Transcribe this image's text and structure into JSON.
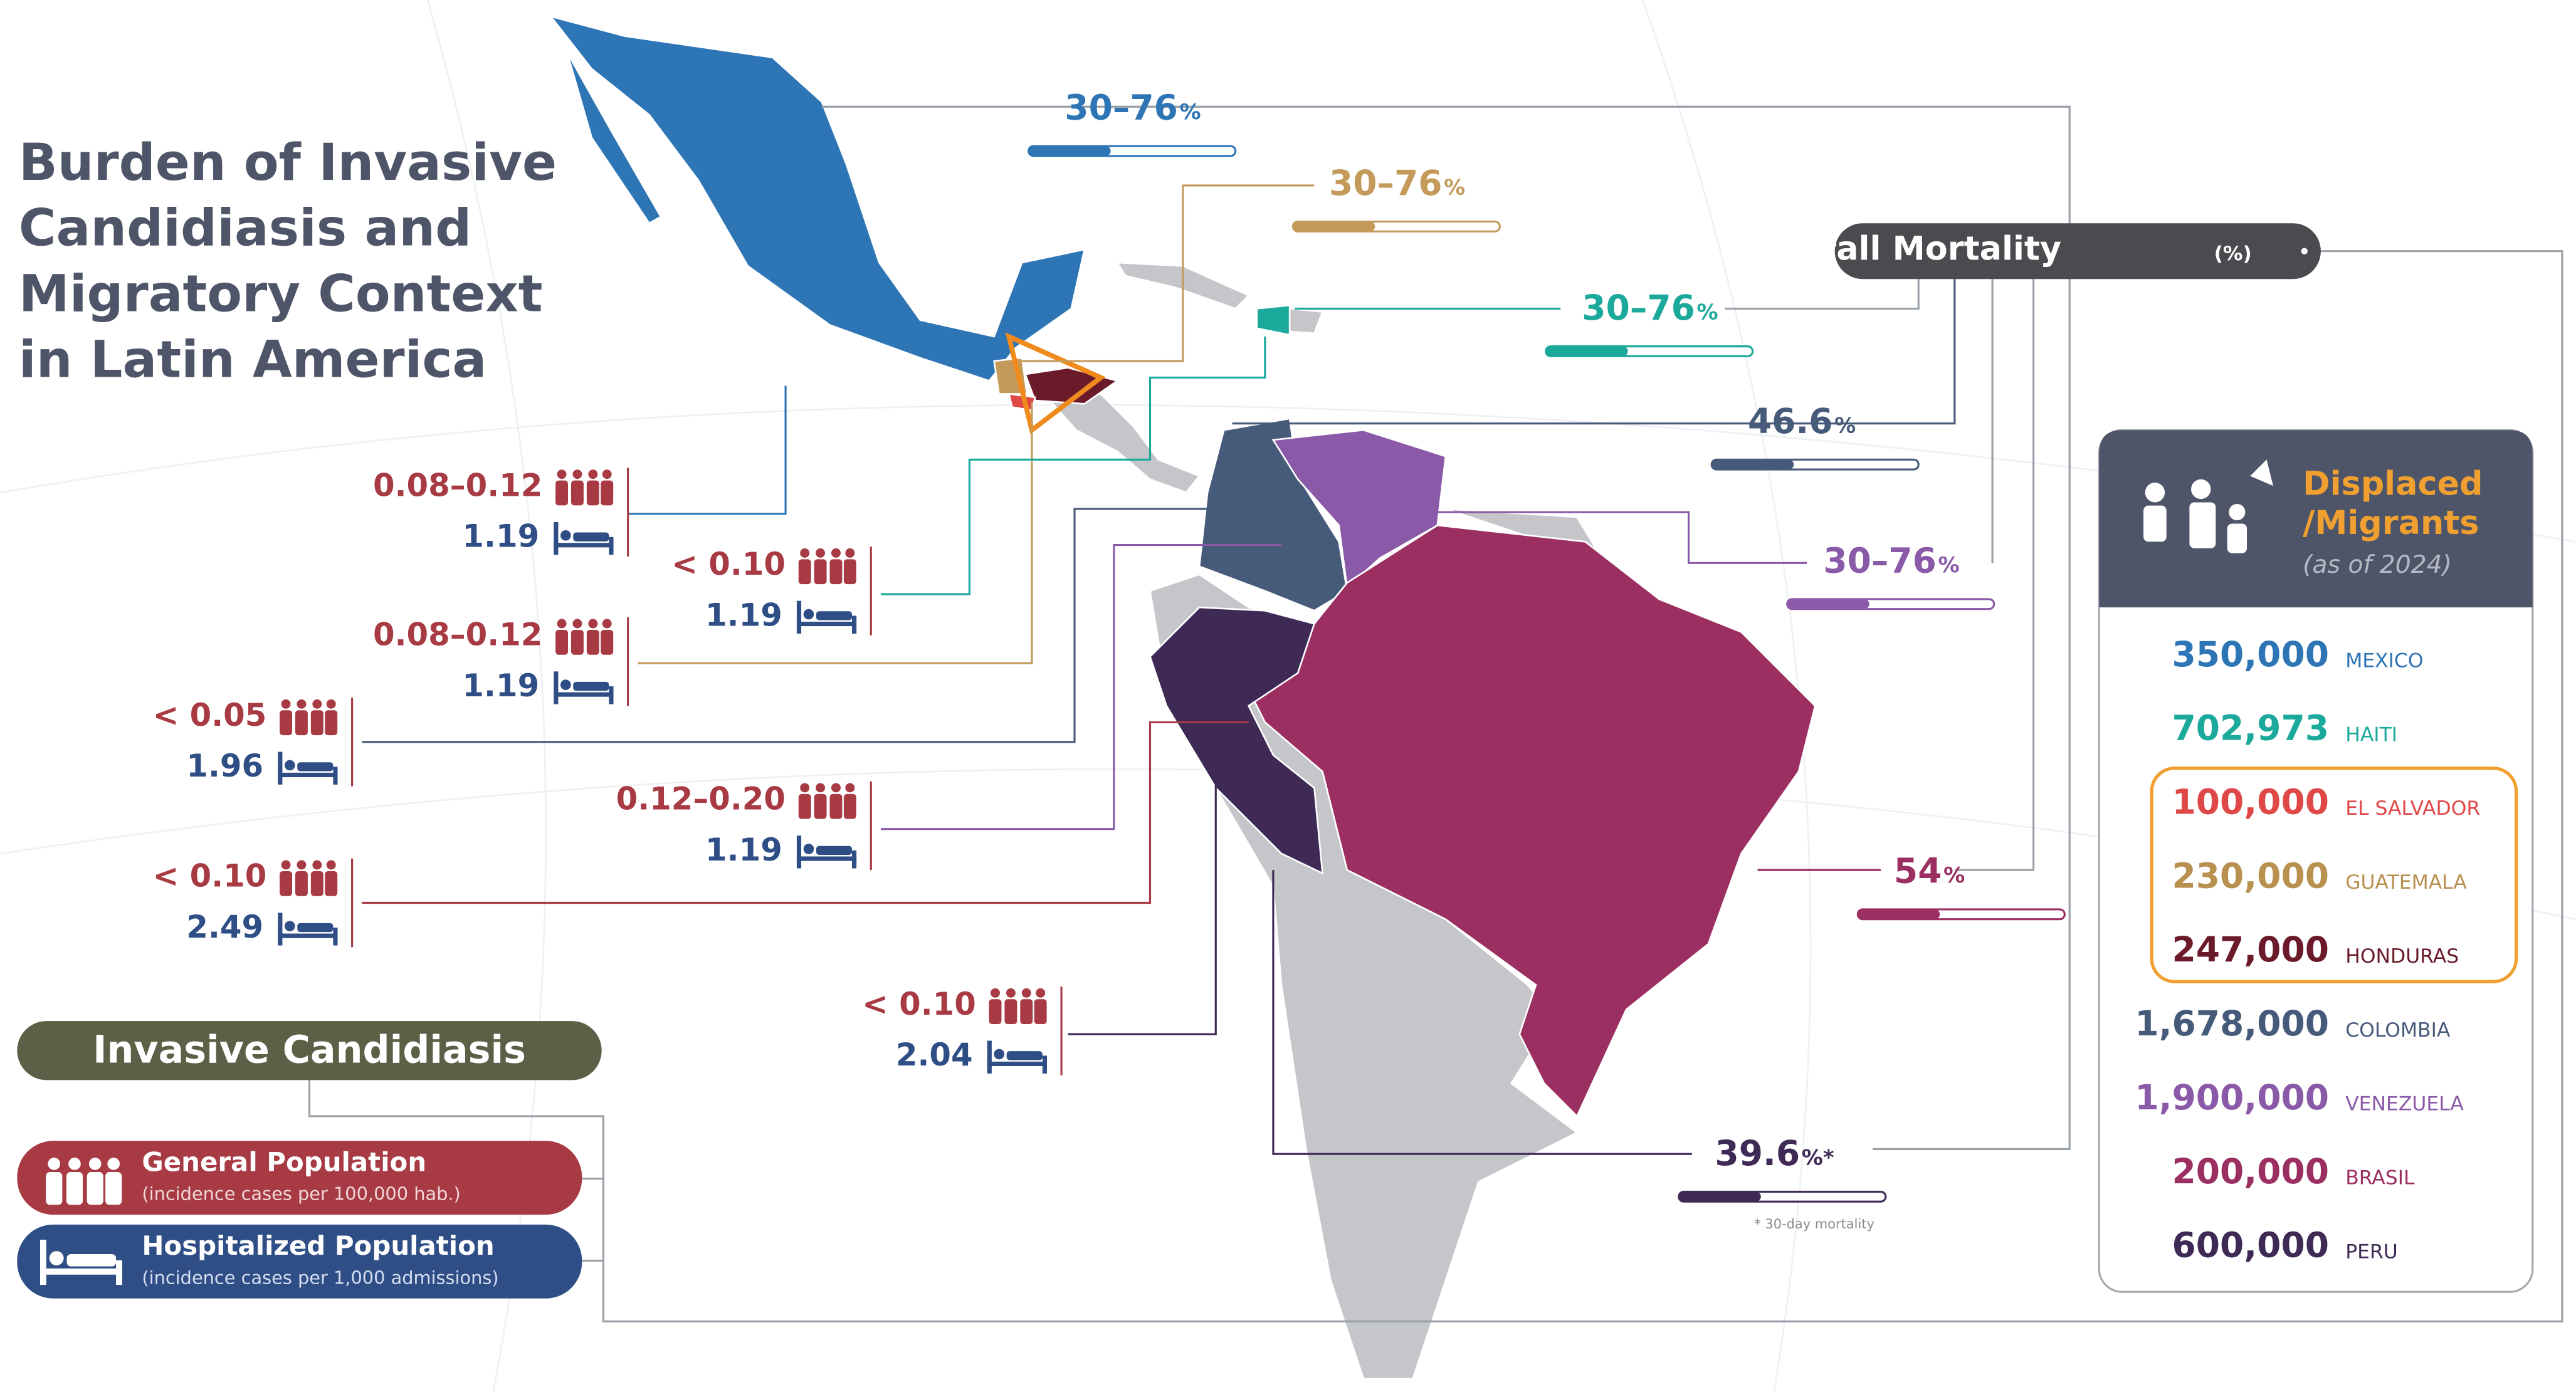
{
  "title": [
    "Burden of Invasive",
    "Candidiasis and",
    "Migratory Context",
    "in Latin America"
  ],
  "mortality_header": {
    "label": "Overall Mortality",
    "unit": "(%)"
  },
  "mortality": [
    {
      "value": "30–76",
      "unit": "%",
      "color": "#2e75b6"
    },
    {
      "value": "30–76",
      "unit": "%",
      "color": "#c49a5a"
    },
    {
      "value": "30–76",
      "unit": "%",
      "color": "#1aa99a"
    },
    {
      "value": "46.6",
      "unit": "%",
      "color": "#465a7a"
    },
    {
      "value": "30–76",
      "unit": "%",
      "color": "#8a5aa8"
    },
    {
      "value": "54",
      "unit": "%",
      "color": "#9b2f62"
    },
    {
      "value": "39.6",
      "unit": "%*",
      "color": "#3f2a55"
    }
  ],
  "mortality_note": "* 30-day mortality",
  "incidence": [
    {
      "general": "0.08–0.12",
      "hospitalized": "1.19"
    },
    {
      "general": "< 0.10",
      "hospitalized": "1.19"
    },
    {
      "general": "0.08–0.12",
      "hospitalized": "1.19"
    },
    {
      "general": "< 0.05",
      "hospitalized": "1.96"
    },
    {
      "general": "0.12–0.20",
      "hospitalized": "1.19"
    },
    {
      "general": "< 0.10",
      "hospitalized": "2.49"
    },
    {
      "general": "< 0.10",
      "hospitalized": "2.04"
    }
  ],
  "legend": {
    "title": "Invasive Candidiasis",
    "general": {
      "label": "General Population",
      "note": "(incidence cases per 100,000 hab.)"
    },
    "hospitalized": {
      "label": "Hospitalized Population",
      "note": "(incidence cases per 1,000 admissions)"
    }
  },
  "displaced": {
    "title": [
      "Displaced",
      "/Migrants"
    ],
    "subtitle": "(as of 2024)",
    "rows": [
      {
        "value": "350,000",
        "country": "MEXICO",
        "color": "#2e75b6"
      },
      {
        "value": "702,973",
        "country": "HAITI",
        "color": "#1aa99a"
      },
      {
        "value": "100,000",
        "country": "EL SALVADOR",
        "color": "#e04848"
      },
      {
        "value": "230,000",
        "country": "GUATEMALA",
        "color": "#b8904f"
      },
      {
        "value": "247,000",
        "country": "HONDURAS",
        "color": "#6b1a2a"
      },
      {
        "value": "1,678,000",
        "country": "COLOMBIA",
        "color": "#465a7a"
      },
      {
        "value": "1,900,000",
        "country": "VENEZUELA",
        "color": "#8a5aa8"
      },
      {
        "value": "200,000",
        "country": "BRASIL",
        "color": "#9b2f62"
      },
      {
        "value": "600,000",
        "country": "PERU",
        "color": "#3f2a55"
      }
    ]
  }
}
